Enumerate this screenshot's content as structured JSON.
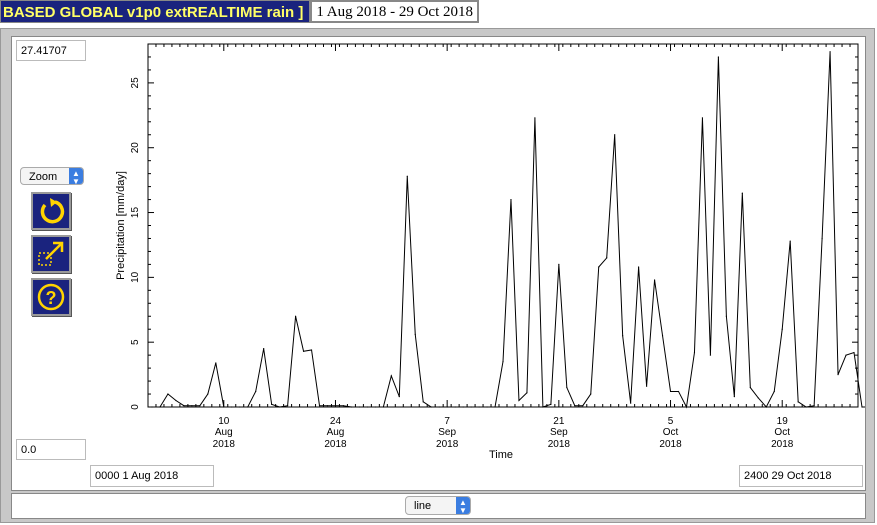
{
  "header": {
    "dataset_title": "BASED GLOBAL v1p0 extREALTIME rain ]",
    "date_range": "1 Aug 2018 - 29 Oct 2018"
  },
  "controls": {
    "y_max_value": "27.41707",
    "y_min_value": "0.0",
    "zoom_select": "Zoom",
    "start_time": "0000 1 Aug 2018",
    "end_time": "2400 29 Oct 2018",
    "plot_type_select": "line",
    "icons": [
      "rotate-reset-icon",
      "expand-zoom-icon",
      "help-icon"
    ]
  },
  "chart_data": {
    "type": "line",
    "xlabel": "Time",
    "ylabel": "Precipitation [mm/day]",
    "ylim": [
      0,
      28
    ],
    "y_ticks": [
      "0",
      "5",
      "10",
      "15",
      "20",
      "25"
    ],
    "x_ticks": [
      {
        "day": "10",
        "month": "Aug",
        "year": "2018"
      },
      {
        "day": "24",
        "month": "Aug",
        "year": "2018"
      },
      {
        "day": "7",
        "month": "Sep",
        "year": "2018"
      },
      {
        "day": "21",
        "month": "Sep",
        "year": "2018"
      },
      {
        "day": "5",
        "month": "Oct",
        "year": "2018"
      },
      {
        "day": "19",
        "month": "Oct",
        "year": "2018"
      }
    ],
    "x_tick_days": [
      9.5,
      23.5,
      37.5,
      51.5,
      65.5,
      79.5
    ],
    "x_range_days": [
      0,
      89
    ],
    "series": [
      {
        "values": [
          0,
          0,
          1.0,
          0.5,
          0.1,
          0.1,
          0.1,
          1.0,
          3.4,
          0,
          0,
          0,
          0,
          1.2,
          4.5,
          0.2,
          0,
          0.1,
          7.0,
          4.3,
          4.4,
          0.1,
          0.1,
          0.1,
          0.1,
          0,
          0,
          0,
          0,
          0,
          2.4,
          0.8,
          17.8,
          5.6,
          0.4,
          0,
          0,
          0,
          0,
          0,
          0,
          0,
          0,
          0,
          3.5,
          16.0,
          0.5,
          1.1,
          22.3,
          0,
          0.2,
          11.0,
          1.5,
          0.1,
          0.1,
          1.0,
          10.8,
          11.5,
          21.0,
          5.5,
          0.3,
          10.8,
          1.6,
          9.8,
          5.5,
          1.2,
          1.2,
          0,
          4.2,
          22.3,
          4.0,
          27.0,
          7.0,
          0.8,
          16.5,
          1.5,
          0.7,
          0,
          1.2,
          6.0,
          12.8,
          0.4,
          0,
          0.1,
          13.0,
          27.4,
          2.5,
          4.0,
          4.2,
          0,
          0,
          0
        ]
      }
    ]
  }
}
